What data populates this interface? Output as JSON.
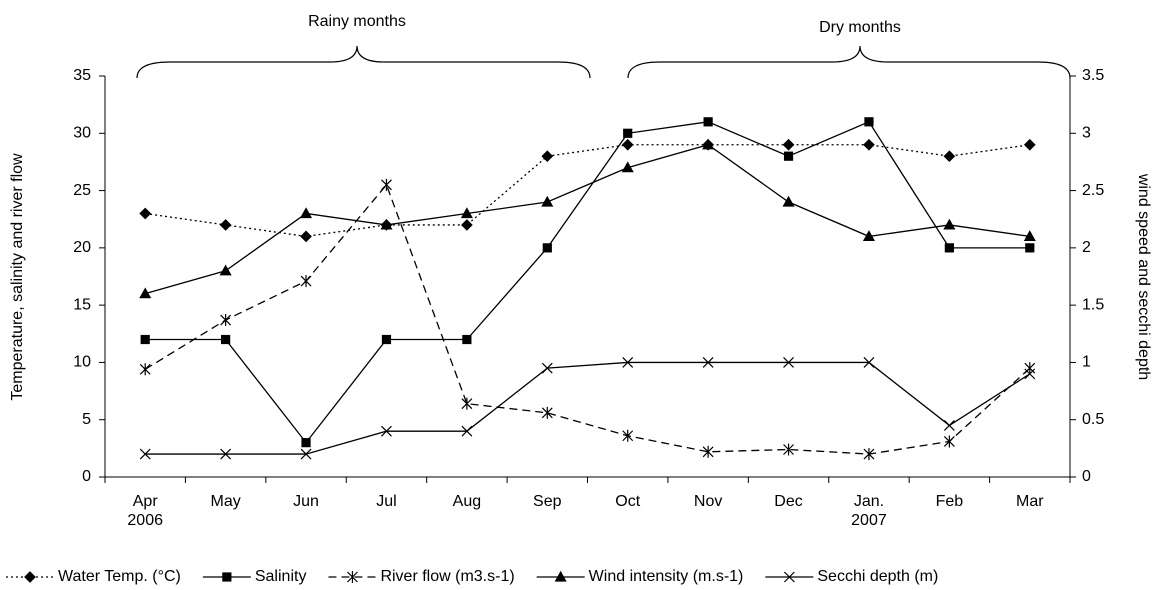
{
  "chart_data": {
    "type": "line",
    "annotations": [
      "Rainy months",
      "Dry months"
    ],
    "ylabel": "Temperature, salinity and river flow",
    "y2label": "wind speed and secchi depth",
    "categories": [
      "Apr\n2006",
      "May",
      "Jun",
      "Jul",
      "Aug",
      "Sep",
      "Oct",
      "Nov",
      "Dec",
      "Jan.\n2007",
      "Feb",
      "Mar"
    ],
    "ylim": [
      0,
      35
    ],
    "yticks": [
      0,
      5,
      10,
      15,
      20,
      25,
      30,
      35
    ],
    "y2lim": [
      0,
      3.5
    ],
    "y2ticks": [
      0,
      0.5,
      1,
      1.5,
      2,
      2.5,
      3,
      3.5
    ],
    "grid": false,
    "legend": "bottom",
    "series": [
      {
        "name": "Water Temp. (°C)",
        "color": "#000000",
        "dash": "dotted",
        "marker": "diamond",
        "values": [
          23,
          22,
          21,
          22,
          22,
          28,
          29,
          29,
          29,
          29,
          28,
          29
        ]
      },
      {
        "name": "Salinity",
        "color": "#000000",
        "dash": "solid",
        "marker": "square",
        "values": [
          12,
          12,
          3,
          12,
          12,
          20,
          30,
          31,
          28,
          31,
          20,
          20
        ]
      },
      {
        "name": "River flow (m3.s-1)",
        "color": "#000000",
        "dash": "dashed",
        "marker": "star",
        "values": [
          9.4,
          13.7,
          17.1,
          25.5,
          6.4,
          5.6,
          3.6,
          2.2,
          2.4,
          2.0,
          3.1,
          9.5
        ]
      },
      {
        "name": "Wind intensity (m.s-1)",
        "color": "#000000",
        "dash": "solid",
        "marker": "triangle",
        "axis": "y2",
        "values": [
          1.6,
          1.8,
          2.3,
          2.2,
          2.3,
          2.4,
          2.7,
          2.9,
          2.4,
          2.1,
          2.2,
          2.1
        ]
      },
      {
        "name": "Secchi depth (m)",
        "color": "#000000",
        "dash": "solid",
        "marker": "x",
        "axis": "y2",
        "values": [
          0.2,
          0.2,
          0.2,
          0.4,
          0.4,
          0.95,
          1.0,
          1.0,
          1.0,
          1.0,
          0.45,
          0.9
        ]
      }
    ]
  }
}
